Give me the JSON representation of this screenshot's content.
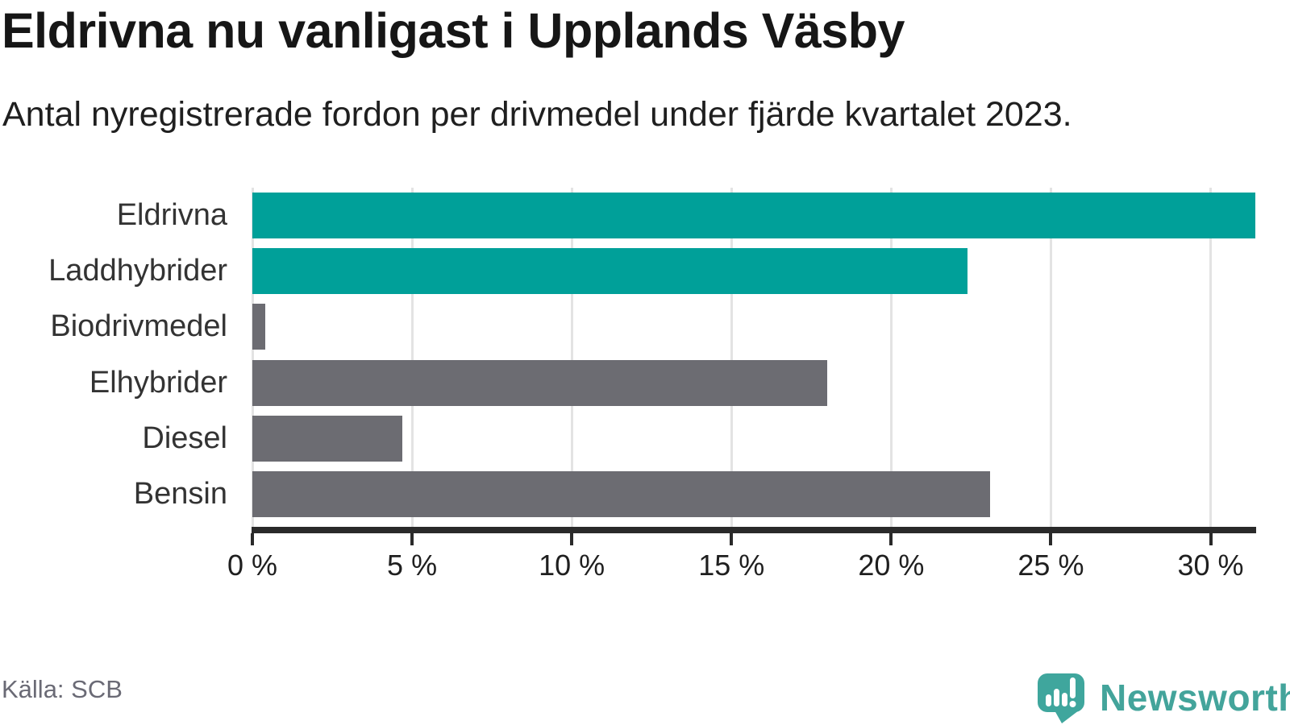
{
  "chart_data": {
    "type": "bar",
    "orientation": "horizontal",
    "title": "Eldrivna nu vanligast i Upplands Väsby",
    "subtitle": "Antal nyregistrerade fordon per drivmedel under fjärde kvartalet 2023.",
    "categories": [
      "Eldrivna",
      "Laddhybrider",
      "Biodrivmedel",
      "Elhybrider",
      "Diesel",
      "Bensin"
    ],
    "values": [
      31.4,
      22.4,
      0.4,
      18.0,
      4.7,
      23.1
    ],
    "unit": "%",
    "xlim": [
      0,
      31.4
    ],
    "xticks": [
      0,
      5,
      10,
      15,
      20,
      25,
      30
    ],
    "xtick_labels": [
      "0 %",
      "5 %",
      "10 %",
      "15 %",
      "20 %",
      "25 %",
      "30 %"
    ],
    "bar_colors": [
      "#00a099",
      "#00a099",
      "#6c6c72",
      "#6c6c72",
      "#6c6c72",
      "#6c6c72"
    ],
    "highlight_color": "#00a099",
    "default_color": "#6c6c72",
    "grid": true,
    "legend": false
  },
  "footer": {
    "source": "Källa: SCB",
    "brand": "Newsworthy",
    "brand_color": "#43a49b"
  }
}
